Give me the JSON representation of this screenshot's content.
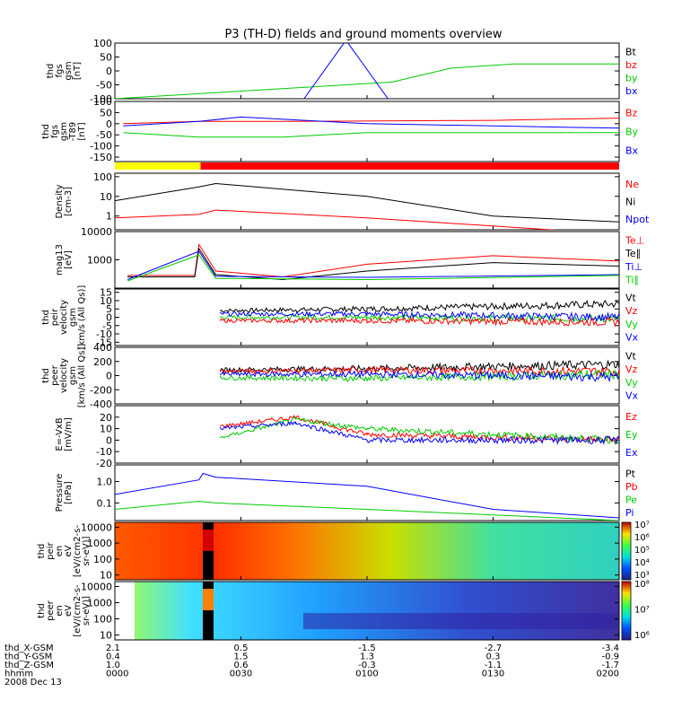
{
  "title": "P3 (TH-D) fields and ground moments overview",
  "panels": [
    {
      "id": "fgs",
      "ylabel": [
        "thd",
        "fgs",
        "gsm",
        "[nT]"
      ],
      "ylim": [
        -100,
        100
      ],
      "ticks": [
        100,
        50,
        0,
        -50,
        -100
      ],
      "legend": [
        {
          "text": "Bt",
          "color": "#000000"
        },
        {
          "text": "bz",
          "color": "#ff0000"
        },
        {
          "text": "by",
          "color": "#00cc00"
        },
        {
          "text": "bx",
          "color": "#0000ff"
        }
      ]
    },
    {
      "id": "fgs_t89",
      "ylabel": [
        "thd",
        "fgs",
        "gsm",
        "-T89",
        "[nT]"
      ],
      "ylim": [
        -170,
        100
      ],
      "ticks": [
        100,
        50,
        0,
        -50,
        -100,
        -150
      ],
      "legend": [
        {
          "text": "Bz",
          "color": "#ff0000"
        },
        {
          "text": "By",
          "color": "#00cc00"
        },
        {
          "text": "Bx",
          "color": "#0000ff"
        }
      ]
    },
    {
      "id": "density",
      "ylabel": [
        "Density",
        "[cm-3]"
      ],
      "ylim": [
        0.2,
        150
      ],
      "log": true,
      "ticks": [
        100,
        10,
        1
      ],
      "legend": [
        {
          "text": "Ne",
          "color": "#ff0000"
        },
        {
          "text": "Ni",
          "color": "#000000"
        },
        {
          "text": "Npot",
          "color": "#0000ff"
        }
      ]
    },
    {
      "id": "temp",
      "ylabel": [
        "mag13",
        "[eV]"
      ],
      "ylim": [
        100,
        10000
      ],
      "log": true,
      "ticks": [
        10000,
        1000
      ],
      "legend": [
        {
          "text": "Te⊥",
          "color": "#ff0000"
        },
        {
          "text": "Te∥",
          "color": "#000000"
        },
        {
          "text": "Ti⊥",
          "color": "#0000ff"
        },
        {
          "text": "Ti∥",
          "color": "#00cc00"
        }
      ]
    },
    {
      "id": "peir_v",
      "ylabel": [
        "thd",
        "peir",
        "velocity",
        "gsm",
        "[km/s (All Qs)]"
      ],
      "ylim": [
        -17,
        17
      ],
      "ticks": [
        15,
        10,
        5,
        0,
        -5,
        -10,
        -15
      ],
      "legend": [
        {
          "text": "Vt",
          "color": "#000000"
        },
        {
          "text": "Vz",
          "color": "#ff0000"
        },
        {
          "text": "Vy",
          "color": "#00cc00"
        },
        {
          "text": "Vx",
          "color": "#0000ff"
        }
      ]
    },
    {
      "id": "peer_v",
      "ylabel": [
        "thd",
        "peer",
        "velocity",
        "gsm",
        "[km/s (All Qs)]"
      ],
      "ylim": [
        -400,
        400
      ],
      "ticks": [
        400,
        200,
        0,
        -200,
        -400
      ],
      "legend": [
        {
          "text": "Vt",
          "color": "#000000"
        },
        {
          "text": "Vz",
          "color": "#ff0000"
        },
        {
          "text": "Vy",
          "color": "#00cc00"
        },
        {
          "text": "Vx",
          "color": "#0000ff"
        }
      ]
    },
    {
      "id": "efield",
      "ylabel": [
        "E=-VxB",
        "[mV/m]"
      ],
      "ylim": [
        -20,
        30
      ],
      "ticks": [
        20,
        10,
        0,
        -10,
        -20
      ],
      "legend": [
        {
          "text": "Ez",
          "color": "#ff0000"
        },
        {
          "text": "Ey",
          "color": "#00cc00"
        },
        {
          "text": "Ex",
          "color": "#0000ff"
        }
      ]
    },
    {
      "id": "pressure",
      "ylabel": [
        "Pressure",
        "[nPa]"
      ],
      "ylim": [
        0.015,
        6
      ],
      "log": true,
      "ticks": [
        1.0,
        0.1
      ],
      "tick_labels": [
        "1.0",
        "0.1"
      ],
      "legend": [
        {
          "text": "Pt",
          "color": "#000000"
        },
        {
          "text": "Pb",
          "color": "#ff0000"
        },
        {
          "text": "Pe",
          "color": "#00cc00"
        },
        {
          "text": "Pi",
          "color": "#0000ff"
        }
      ]
    },
    {
      "id": "peir_spec",
      "ylabel": [
        "thd",
        "peir",
        "en",
        "eV",
        "[eV/(cm2-s-",
        "sr-eV)]"
      ],
      "ylim": [
        5,
        20000
      ],
      "log": true,
      "ticks": [
        10000,
        1000,
        100,
        10
      ],
      "colorbar": {
        "labels": [
          "10⁷",
          "10⁶",
          "10⁵",
          "10⁴",
          "10³"
        ]
      }
    },
    {
      "id": "peer_spec",
      "ylabel": [
        "thd",
        "peer",
        "en",
        "eV",
        "[eV/(cm2-s-",
        "sr-eV)]"
      ],
      "ylim": [
        5,
        20000
      ],
      "log": true,
      "ticks": [
        10000,
        1000,
        100,
        10
      ],
      "colorbar": {
        "labels": [
          "10⁸",
          "10⁷",
          "10⁶"
        ]
      }
    }
  ],
  "bar_status": {
    "segments": [
      {
        "color": "#ffff00",
        "from": 0,
        "to": 0.17
      },
      {
        "color": "#ff0000",
        "from": 0.17,
        "to": 1
      }
    ]
  },
  "xaxis": {
    "rows": [
      {
        "label": "thd_X-GSM",
        "values": [
          "2.1",
          "0.5",
          "-1.5",
          "-2.7",
          "-3.4"
        ]
      },
      {
        "label": "thd_Y-GSM",
        "values": [
          "0.4",
          "1.5",
          "1.3",
          "0.3",
          "-0.9"
        ]
      },
      {
        "label": "thd_Z-GSM",
        "values": [
          "1.0",
          "0.6",
          "-0.3",
          "-1.1",
          "-1.7"
        ]
      },
      {
        "label": "hhmm",
        "values": [
          "0000",
          "0030",
          "0100",
          "0130",
          "0200"
        ]
      }
    ],
    "date": "2008 Dec 13"
  },
  "chart_data": {
    "type": "line",
    "title": "P3 (TH-D) fields and ground moments overview",
    "x_minutes": [
      0,
      30,
      60,
      90,
      120
    ],
    "x_ticks": [
      "0000",
      "0030",
      "0100",
      "0130",
      "0200"
    ],
    "series": [
      {
        "panel": "fgs",
        "name": "by",
        "color": "#00cc00",
        "points": [
          [
            0,
            -100
          ],
          [
            66,
            -40
          ],
          [
            80,
            10
          ],
          [
            95,
            25
          ],
          [
            120,
            25
          ]
        ]
      },
      {
        "panel": "fgs",
        "name": "bx",
        "color": "#0000ff",
        "points": [
          [
            45,
            -100
          ],
          [
            55,
            110
          ],
          [
            65,
            -100
          ]
        ]
      },
      {
        "panel": "fgs_t89",
        "name": "Bz",
        "color": "#ff0000",
        "points": [
          [
            2,
            0
          ],
          [
            20,
            10
          ],
          [
            40,
            10
          ],
          [
            90,
            15
          ],
          [
            120,
            25
          ]
        ]
      },
      {
        "panel": "fgs_t89",
        "name": "By",
        "color": "#00cc00",
        "points": [
          [
            2,
            -40
          ],
          [
            20,
            -60
          ],
          [
            40,
            -60
          ],
          [
            60,
            -40
          ],
          [
            120,
            -40
          ]
        ]
      },
      {
        "panel": "fgs_t89",
        "name": "Bx",
        "color": "#0000ff",
        "points": [
          [
            2,
            -10
          ],
          [
            20,
            10
          ],
          [
            30,
            30
          ],
          [
            60,
            0
          ],
          [
            120,
            -20
          ]
        ]
      },
      {
        "panel": "density",
        "name": "Ni",
        "color": "#000000",
        "points": [
          [
            0,
            6
          ],
          [
            20,
            30
          ],
          [
            24,
            45
          ],
          [
            60,
            10
          ],
          [
            90,
            1
          ],
          [
            120,
            0.5
          ]
        ]
      },
      {
        "panel": "density",
        "name": "Ne",
        "color": "#ff0000",
        "points": [
          [
            0,
            0.8
          ],
          [
            20,
            1.2
          ],
          [
            24,
            2
          ],
          [
            60,
            0.8
          ],
          [
            120,
            0.12
          ]
        ]
      },
      {
        "panel": "temp",
        "name": "Te⊥",
        "color": "#ff0000",
        "points": [
          [
            3,
            280
          ],
          [
            19,
            280
          ],
          [
            20,
            3500
          ],
          [
            24,
            400
          ],
          [
            40,
            250
          ],
          [
            60,
            700
          ],
          [
            90,
            1400
          ],
          [
            120,
            900
          ]
        ]
      },
      {
        "panel": "temp",
        "name": "Te∥",
        "color": "#000000",
        "points": [
          [
            3,
            250
          ],
          [
            19,
            250
          ],
          [
            20,
            2500
          ],
          [
            24,
            300
          ],
          [
            40,
            200
          ],
          [
            60,
            400
          ],
          [
            90,
            800
          ],
          [
            120,
            600
          ]
        ]
      },
      {
        "panel": "temp",
        "name": "Ti⊥",
        "color": "#0000ff",
        "points": [
          [
            3,
            200
          ],
          [
            20,
            2000
          ],
          [
            24,
            260
          ],
          [
            60,
            240
          ],
          [
            120,
            300
          ]
        ]
      },
      {
        "panel": "temp",
        "name": "Ti∥",
        "color": "#00cc00",
        "points": [
          [
            3,
            180
          ],
          [
            20,
            1500
          ],
          [
            24,
            220
          ],
          [
            60,
            200
          ],
          [
            120,
            280
          ]
        ]
      },
      {
        "panel": "peir_v",
        "name": "Vt",
        "color": "#000000",
        "points": [
          [
            25,
            4
          ],
          [
            60,
            5
          ],
          [
            120,
            8
          ]
        ]
      },
      {
        "panel": "peir_v",
        "name": "Vy",
        "color": "#00cc00",
        "points": [
          [
            25,
            0
          ],
          [
            60,
            0
          ],
          [
            120,
            -1
          ]
        ]
      },
      {
        "panel": "peir_v",
        "name": "Vx",
        "color": "#0000ff",
        "points": [
          [
            25,
            2
          ],
          [
            60,
            2
          ],
          [
            120,
            0
          ]
        ]
      },
      {
        "panel": "peir_v",
        "name": "Vz",
        "color": "#ff0000",
        "points": [
          [
            25,
            -2
          ],
          [
            60,
            -2
          ],
          [
            120,
            -3
          ]
        ]
      },
      {
        "panel": "peer_v",
        "name": "Vt",
        "color": "#000000",
        "points": [
          [
            25,
            80
          ],
          [
            60,
            100
          ],
          [
            120,
            160
          ]
        ]
      },
      {
        "panel": "peer_v",
        "name": "Vz",
        "color": "#ff0000",
        "points": [
          [
            25,
            60
          ],
          [
            60,
            80
          ],
          [
            120,
            60
          ]
        ]
      },
      {
        "panel": "peer_v",
        "name": "Vy",
        "color": "#00cc00",
        "points": [
          [
            25,
            -30
          ],
          [
            60,
            -40
          ],
          [
            120,
            20
          ]
        ]
      },
      {
        "panel": "peer_v",
        "name": "Vx",
        "color": "#0000ff",
        "points": [
          [
            25,
            20
          ],
          [
            60,
            20
          ],
          [
            120,
            -20
          ]
        ]
      },
      {
        "panel": "efield",
        "name": "Ez",
        "color": "#ff0000",
        "points": [
          [
            25,
            12
          ],
          [
            43,
            20
          ],
          [
            60,
            5
          ],
          [
            120,
            0
          ]
        ]
      },
      {
        "panel": "efield",
        "name": "Ey",
        "color": "#00cc00",
        "points": [
          [
            25,
            2
          ],
          [
            43,
            18
          ],
          [
            60,
            10
          ],
          [
            120,
            0
          ]
        ]
      },
      {
        "panel": "efield",
        "name": "Ex",
        "color": "#0000ff",
        "points": [
          [
            25,
            10
          ],
          [
            43,
            15
          ],
          [
            60,
            0
          ],
          [
            120,
            0
          ]
        ]
      },
      {
        "panel": "pressure",
        "name": "Pi",
        "color": "#0000ff",
        "points": [
          [
            0,
            0.25
          ],
          [
            20,
            1.2
          ],
          [
            21,
            2.4
          ],
          [
            24,
            1.6
          ],
          [
            60,
            0.6
          ],
          [
            90,
            0.05
          ],
          [
            120,
            0.02
          ]
        ]
      },
      {
        "panel": "pressure",
        "name": "Pe",
        "color": "#00cc00",
        "points": [
          [
            0,
            0.05
          ],
          [
            20,
            0.12
          ],
          [
            24,
            0.1
          ],
          [
            60,
            0.05
          ],
          [
            120,
            0.015
          ]
        ]
      }
    ]
  }
}
